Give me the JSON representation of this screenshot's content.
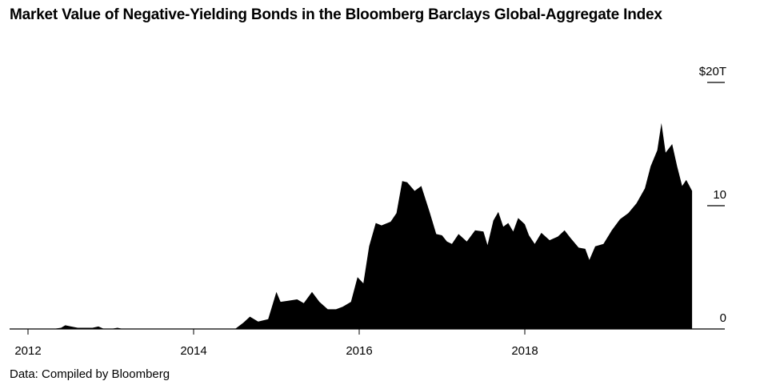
{
  "title": "Market Value of Negative-Yielding Bonds in the Bloomberg Barclays Global-Aggregate Index",
  "source": "Data: Compiled by Bloomberg",
  "chart_data": {
    "type": "area",
    "title": "Market Value of Negative-Yielding Bonds in the Bloomberg Barclays Global-Aggregate Index",
    "xlabel": "",
    "ylabel": "",
    "x_ticks": [
      "2012",
      "2014",
      "2016",
      "2018"
    ],
    "y_ticks": [
      {
        "value": 0,
        "label": "0"
      },
      {
        "value": 10,
        "label": "10"
      },
      {
        "value": 20,
        "label": "$20T"
      }
    ],
    "xlim": [
      2011.95,
      2020.2
    ],
    "ylim": [
      0,
      20
    ],
    "grid": false,
    "fill_color": "#000000",
    "series": [
      {
        "values": [
          [
            2012.0,
            0.0
          ],
          [
            2012.3,
            0.0
          ],
          [
            2012.4,
            0.1
          ],
          [
            2012.45,
            0.3
          ],
          [
            2012.52,
            0.2
          ],
          [
            2012.6,
            0.1
          ],
          [
            2012.68,
            0.1
          ],
          [
            2012.78,
            0.1
          ],
          [
            2012.85,
            0.2
          ],
          [
            2012.92,
            0.0
          ],
          [
            2013.0,
            0.0
          ],
          [
            2013.08,
            0.1
          ],
          [
            2013.15,
            0.0
          ],
          [
            2013.25,
            0.0
          ],
          [
            2014.5,
            0.0
          ],
          [
            2014.6,
            0.5
          ],
          [
            2014.68,
            1.0
          ],
          [
            2014.78,
            0.6
          ],
          [
            2014.9,
            0.8
          ],
          [
            2015.0,
            3.0
          ],
          [
            2015.05,
            2.2
          ],
          [
            2015.15,
            2.3
          ],
          [
            2015.25,
            2.4
          ],
          [
            2015.33,
            2.1
          ],
          [
            2015.43,
            3.0
          ],
          [
            2015.52,
            2.2
          ],
          [
            2015.62,
            1.6
          ],
          [
            2015.72,
            1.6
          ],
          [
            2015.8,
            1.8
          ],
          [
            2015.9,
            2.2
          ],
          [
            2015.98,
            4.2
          ],
          [
            2016.05,
            3.7
          ],
          [
            2016.12,
            6.7
          ],
          [
            2016.2,
            8.6
          ],
          [
            2016.27,
            8.4
          ],
          [
            2016.38,
            8.7
          ],
          [
            2016.45,
            9.4
          ],
          [
            2016.52,
            12.0
          ],
          [
            2016.58,
            11.9
          ],
          [
            2016.67,
            11.2
          ],
          [
            2016.75,
            11.6
          ],
          [
            2016.85,
            9.5
          ],
          [
            2016.93,
            7.7
          ],
          [
            2017.0,
            7.6
          ],
          [
            2017.06,
            7.1
          ],
          [
            2017.12,
            6.9
          ],
          [
            2017.2,
            7.7
          ],
          [
            2017.3,
            7.1
          ],
          [
            2017.4,
            8.0
          ],
          [
            2017.5,
            7.9
          ],
          [
            2017.55,
            6.8
          ],
          [
            2017.62,
            8.8
          ],
          [
            2017.68,
            9.5
          ],
          [
            2017.74,
            8.3
          ],
          [
            2017.8,
            8.6
          ],
          [
            2017.86,
            7.9
          ],
          [
            2017.92,
            9.0
          ],
          [
            2018.0,
            8.5
          ],
          [
            2018.05,
            7.6
          ],
          [
            2018.12,
            6.9
          ],
          [
            2018.2,
            7.8
          ],
          [
            2018.3,
            7.2
          ],
          [
            2018.4,
            7.5
          ],
          [
            2018.48,
            8.0
          ],
          [
            2018.55,
            7.4
          ],
          [
            2018.65,
            6.6
          ],
          [
            2018.73,
            6.5
          ],
          [
            2018.78,
            5.6
          ],
          [
            2018.85,
            6.7
          ],
          [
            2018.95,
            6.9
          ],
          [
            2019.05,
            8.0
          ],
          [
            2019.15,
            8.9
          ],
          [
            2019.25,
            9.4
          ],
          [
            2019.35,
            10.2
          ],
          [
            2019.45,
            11.4
          ],
          [
            2019.52,
            13.2
          ],
          [
            2019.6,
            14.5
          ],
          [
            2019.65,
            16.7
          ],
          [
            2019.7,
            14.3
          ],
          [
            2019.78,
            15.0
          ],
          [
            2019.84,
            13.2
          ],
          [
            2019.9,
            11.6
          ],
          [
            2019.95,
            12.1
          ],
          [
            2020.02,
            11.2
          ]
        ]
      }
    ]
  }
}
